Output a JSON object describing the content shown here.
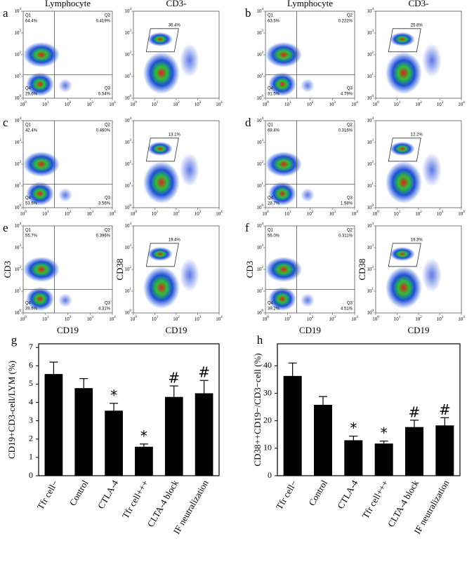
{
  "flow_axis": {
    "base": "10",
    "exponents": [
      "0",
      "1",
      "2",
      "3",
      "4"
    ]
  },
  "quadrant_names": [
    "Q1",
    "Q2",
    "Q3",
    "Q4"
  ],
  "flow_panels": [
    {
      "letter": "a",
      "left": {
        "title": "Lymphocyte",
        "quadrants": [
          "64.4%",
          "0.419%",
          "5.54%",
          "29.6%"
        ]
      },
      "right": {
        "title": "CD3-",
        "gate": "36.4%"
      }
    },
    {
      "letter": "b",
      "left": {
        "title": "Lymphocyte",
        "quadrants": [
          "63.5%",
          "0.222%",
          "4.79%",
          "31.5%"
        ]
      },
      "right": {
        "title": "CD3-",
        "gate": "25.8%"
      }
    },
    {
      "letter": "c",
      "left": {
        "quadrants": [
          "42.4%",
          "0.460%",
          "3.56%",
          "53.6%"
        ]
      },
      "right": {
        "gate": "13.1%"
      }
    },
    {
      "letter": "d",
      "left": {
        "quadrants": [
          "69.4%",
          "0.316%",
          "1.58%",
          "28.7%"
        ]
      },
      "right": {
        "gate": "12.2%"
      }
    },
    {
      "letter": "e",
      "left": {
        "quadrants": [
          "55.7%",
          "0.396%",
          "4.31%",
          "39.6%"
        ],
        "ylabel": "CD3",
        "xlabel": "CD19"
      },
      "right": {
        "gate": "19.4%",
        "ylabel": "CD38",
        "xlabel": "CD19"
      }
    },
    {
      "letter": "f",
      "left": {
        "quadrants": [
          "56.0%",
          "0.311%",
          "4.51%",
          "39.2%"
        ],
        "ylabel": "CD3",
        "xlabel": "CD19"
      },
      "right": {
        "gate": "19.3%",
        "ylabel": "CD38",
        "xlabel": "CD19"
      }
    }
  ],
  "chart_data": [
    {
      "type": "bar",
      "letter": "g",
      "ylabel": "CD19+CD3-cell/LYM (%)",
      "categories": [
        "Tfr cell−",
        "Control",
        "CTLA-4",
        "Tfr cell+++",
        "CLTA-4 block",
        "IF neutralization"
      ],
      "values": [
        5.55,
        4.78,
        3.55,
        1.58,
        4.3,
        4.5
      ],
      "errors": [
        0.65,
        0.52,
        0.4,
        0.15,
        0.6,
        0.7
      ],
      "annotations": [
        null,
        null,
        "*",
        "*",
        "#",
        "#"
      ],
      "color": "#000000",
      "ylim": [
        0,
        7.2
      ],
      "yticks": [
        0,
        1,
        2,
        3,
        4,
        5,
        6,
        7
      ]
    },
    {
      "type": "bar",
      "letter": "h",
      "ylabel": "CD38++CD19−/CD3−cell (%)",
      "categories": [
        "Tfr cell−",
        "Control",
        "CTLA-4",
        "Tfr cell+++",
        "CLTA-4 block",
        "IF neutralization"
      ],
      "values": [
        36.3,
        25.8,
        12.9,
        11.7,
        17.7,
        18.3
      ],
      "errors": [
        4.7,
        3,
        1.5,
        0.9,
        2.5,
        2.8
      ],
      "annotations": [
        null,
        null,
        "*",
        "*",
        "#",
        "#"
      ],
      "color": "#000000",
      "ylim": [
        0,
        48
      ],
      "yticks": [
        0,
        10,
        20,
        30,
        40
      ]
    }
  ]
}
